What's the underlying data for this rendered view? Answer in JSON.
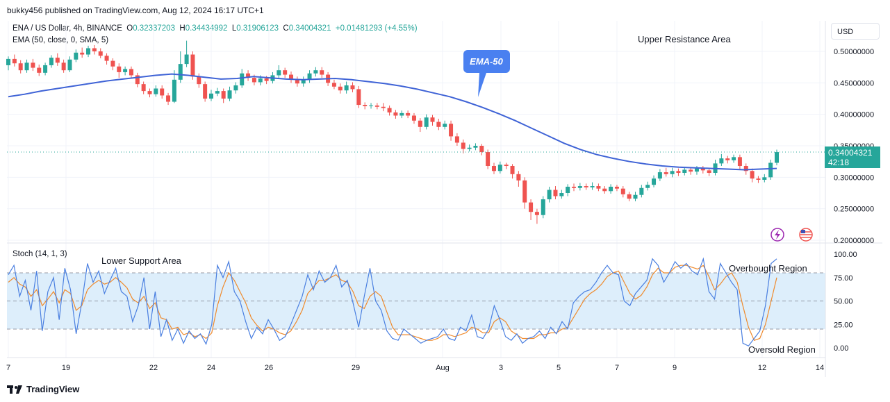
{
  "header": {
    "publisher": "bukky456 published on TradingView.com, Aug 12, 2024 16:17 UTC+1"
  },
  "legend": {
    "symbol_line": "ENA / US Dollar, 4h, BINANCE",
    "open_label": "O",
    "open": "0.32337203",
    "high_label": "H",
    "high": "0.34434992",
    "low_label": "L",
    "low": "0.31906123",
    "close_label": "C",
    "close": "0.34004321",
    "change": "+0.01481293 (+4.55%)",
    "ema_line": "EMA (50, close, 0, SMA, 5)"
  },
  "currency_button": "USD",
  "current_price": {
    "price": "0.34004321",
    "countdown": "42:18"
  },
  "annotations": {
    "upper_resistance": "Upper Resistance Area",
    "ema_callout": "EMA-50",
    "lower_support": "Lower Support Area",
    "overbought": "Overbought Region",
    "oversold": "Oversold Region"
  },
  "stoch_label": "Stoch (14, 1, 3)",
  "footer_brand": "TradingView",
  "colors": {
    "up": "#26a69a",
    "down": "#ef5350",
    "ema": "#3f63d6",
    "stoch_k": "#4a7fe0",
    "stoch_d": "#ef8a2c",
    "band": "#ddeefb"
  },
  "chart_data": [
    {
      "type": "candlestick",
      "title": "ENA / US Dollar, 4h, BINANCE",
      "price_axis_ticks": [
        "0.50000000",
        "0.45000000",
        "0.40000000",
        "0.35000000",
        "0.30000000",
        "0.25000000",
        "0.20000000"
      ],
      "ylim": [
        0.2,
        0.51
      ],
      "time_axis_ticks": [
        "7",
        "19",
        "22",
        "24",
        "26",
        "29",
        "Aug",
        "3",
        "5",
        "7",
        "9",
        "12",
        "14"
      ],
      "ema_50": [
        0.428,
        0.432,
        0.437,
        0.441,
        0.445,
        0.449,
        0.453,
        0.456,
        0.459,
        0.462,
        0.464,
        0.462,
        0.459,
        0.456,
        0.457,
        0.46,
        0.458,
        0.456,
        0.455,
        0.456,
        0.457,
        0.455,
        0.452,
        0.449,
        0.445,
        0.44,
        0.434,
        0.428,
        0.42,
        0.411,
        0.401,
        0.39,
        0.378,
        0.366,
        0.354,
        0.344,
        0.336,
        0.33,
        0.325,
        0.321,
        0.318,
        0.316,
        0.315,
        0.314,
        0.313,
        0.312,
        0.313,
        0.314
      ],
      "candles": [
        [
          0.478,
          0.488,
          0.492,
          0.47
        ],
        [
          0.488,
          0.481,
          0.495,
          0.476
        ],
        [
          0.481,
          0.47,
          0.486,
          0.465
        ],
        [
          0.47,
          0.482,
          0.487,
          0.466
        ],
        [
          0.482,
          0.474,
          0.488,
          0.469
        ],
        [
          0.474,
          0.466,
          0.479,
          0.461
        ],
        [
          0.466,
          0.478,
          0.482,
          0.462
        ],
        [
          0.478,
          0.49,
          0.494,
          0.474
        ],
        [
          0.49,
          0.482,
          0.497,
          0.477
        ],
        [
          0.482,
          0.47,
          0.487,
          0.466
        ],
        [
          0.47,
          0.487,
          0.492,
          0.467
        ],
        [
          0.487,
          0.498,
          0.503,
          0.483
        ],
        [
          0.498,
          0.495,
          0.506,
          0.49
        ],
        [
          0.495,
          0.505,
          0.509,
          0.491
        ],
        [
          0.505,
          0.5,
          0.51,
          0.495
        ],
        [
          0.5,
          0.493,
          0.505,
          0.489
        ],
        [
          0.493,
          0.485,
          0.497,
          0.479
        ],
        [
          0.485,
          0.476,
          0.489,
          0.47
        ],
        [
          0.476,
          0.467,
          0.481,
          0.458
        ],
        [
          0.467,
          0.472,
          0.476,
          0.462
        ],
        [
          0.472,
          0.462,
          0.476,
          0.457
        ],
        [
          0.462,
          0.448,
          0.466,
          0.443
        ],
        [
          0.448,
          0.437,
          0.452,
          0.432
        ],
        [
          0.437,
          0.432,
          0.441,
          0.427
        ],
        [
          0.432,
          0.441,
          0.446,
          0.428
        ],
        [
          0.441,
          0.43,
          0.446,
          0.425
        ],
        [
          0.43,
          0.42,
          0.434,
          0.415
        ],
        [
          0.42,
          0.455,
          0.47,
          0.418
        ],
        [
          0.455,
          0.48,
          0.5,
          0.45
        ],
        [
          0.48,
          0.495,
          0.517,
          0.475
        ],
        [
          0.495,
          0.46,
          0.5,
          0.455
        ],
        [
          0.46,
          0.448,
          0.465,
          0.442
        ],
        [
          0.448,
          0.425,
          0.452,
          0.42
        ],
        [
          0.425,
          0.433,
          0.439,
          0.421
        ],
        [
          0.433,
          0.437,
          0.442,
          0.429
        ],
        [
          0.437,
          0.425,
          0.441,
          0.418
        ],
        [
          0.425,
          0.438,
          0.444,
          0.421
        ],
        [
          0.438,
          0.446,
          0.451,
          0.433
        ],
        [
          0.446,
          0.465,
          0.472,
          0.442
        ],
        [
          0.465,
          0.458,
          0.47,
          0.453
        ],
        [
          0.458,
          0.451,
          0.463,
          0.446
        ],
        [
          0.451,
          0.457,
          0.462,
          0.446
        ],
        [
          0.457,
          0.453,
          0.461,
          0.448
        ],
        [
          0.453,
          0.462,
          0.467,
          0.449
        ],
        [
          0.462,
          0.47,
          0.478,
          0.457
        ],
        [
          0.47,
          0.463,
          0.474,
          0.458
        ],
        [
          0.463,
          0.455,
          0.468,
          0.45
        ],
        [
          0.455,
          0.449,
          0.46,
          0.444
        ],
        [
          0.449,
          0.455,
          0.46,
          0.444
        ],
        [
          0.455,
          0.465,
          0.47,
          0.45
        ],
        [
          0.465,
          0.47,
          0.475,
          0.46
        ],
        [
          0.47,
          0.463,
          0.475,
          0.458
        ],
        [
          0.463,
          0.45,
          0.467,
          0.445
        ],
        [
          0.45,
          0.444,
          0.455,
          0.44
        ],
        [
          0.444,
          0.438,
          0.449,
          0.433
        ],
        [
          0.438,
          0.446,
          0.452,
          0.433
        ],
        [
          0.446,
          0.44,
          0.451,
          0.435
        ],
        [
          0.44,
          0.415,
          0.445,
          0.41
        ],
        [
          0.415,
          0.413,
          0.419,
          0.408
        ],
        [
          0.413,
          0.414,
          0.418,
          0.409
        ],
        [
          0.414,
          0.412,
          0.418,
          0.408
        ],
        [
          0.412,
          0.41,
          0.418,
          0.405
        ],
        [
          0.41,
          0.403,
          0.414,
          0.398
        ],
        [
          0.403,
          0.398,
          0.407,
          0.393
        ],
        [
          0.398,
          0.402,
          0.406,
          0.394
        ],
        [
          0.402,
          0.398,
          0.406,
          0.394
        ],
        [
          0.398,
          0.39,
          0.402,
          0.385
        ],
        [
          0.39,
          0.38,
          0.394,
          0.372
        ],
        [
          0.38,
          0.395,
          0.4,
          0.376
        ],
        [
          0.395,
          0.388,
          0.399,
          0.382
        ],
        [
          0.388,
          0.38,
          0.393,
          0.375
        ],
        [
          0.38,
          0.385,
          0.39,
          0.376
        ],
        [
          0.385,
          0.365,
          0.39,
          0.358
        ],
        [
          0.365,
          0.355,
          0.37,
          0.35
        ],
        [
          0.355,
          0.345,
          0.36,
          0.338
        ],
        [
          0.345,
          0.347,
          0.352,
          0.341
        ],
        [
          0.347,
          0.35,
          0.354,
          0.343
        ],
        [
          0.35,
          0.34,
          0.353,
          0.335
        ],
        [
          0.34,
          0.318,
          0.344,
          0.313
        ],
        [
          0.318,
          0.31,
          0.323,
          0.305
        ],
        [
          0.31,
          0.32,
          0.325,
          0.306
        ],
        [
          0.32,
          0.318,
          0.323,
          0.313
        ],
        [
          0.318,
          0.305,
          0.321,
          0.298
        ],
        [
          0.305,
          0.295,
          0.31,
          0.285
        ],
        [
          0.295,
          0.26,
          0.3,
          0.25
        ],
        [
          0.26,
          0.245,
          0.265,
          0.232
        ],
        [
          0.245,
          0.24,
          0.25,
          0.226
        ],
        [
          0.24,
          0.265,
          0.27,
          0.235
        ],
        [
          0.265,
          0.28,
          0.285,
          0.26
        ],
        [
          0.28,
          0.27,
          0.286,
          0.265
        ],
        [
          0.27,
          0.275,
          0.28,
          0.266
        ],
        [
          0.275,
          0.285,
          0.289,
          0.27
        ],
        [
          0.285,
          0.283,
          0.29,
          0.278
        ],
        [
          0.283,
          0.286,
          0.291,
          0.279
        ],
        [
          0.286,
          0.284,
          0.29,
          0.28
        ],
        [
          0.284,
          0.286,
          0.292,
          0.28
        ],
        [
          0.286,
          0.282,
          0.29,
          0.278
        ],
        [
          0.282,
          0.278,
          0.286,
          0.274
        ],
        [
          0.278,
          0.285,
          0.289,
          0.274
        ],
        [
          0.285,
          0.282,
          0.288,
          0.278
        ],
        [
          0.282,
          0.273,
          0.286,
          0.268
        ],
        [
          0.273,
          0.266,
          0.277,
          0.262
        ],
        [
          0.266,
          0.272,
          0.277,
          0.262
        ],
        [
          0.272,
          0.283,
          0.288,
          0.268
        ],
        [
          0.283,
          0.288,
          0.293,
          0.279
        ],
        [
          0.288,
          0.298,
          0.303,
          0.284
        ],
        [
          0.298,
          0.308,
          0.313,
          0.294
        ],
        [
          0.308,
          0.305,
          0.315,
          0.301
        ],
        [
          0.305,
          0.31,
          0.315,
          0.3
        ],
        [
          0.31,
          0.307,
          0.314,
          0.302
        ],
        [
          0.307,
          0.312,
          0.316,
          0.303
        ],
        [
          0.312,
          0.309,
          0.316,
          0.304
        ],
        [
          0.309,
          0.314,
          0.318,
          0.304
        ],
        [
          0.314,
          0.311,
          0.318,
          0.306
        ],
        [
          0.311,
          0.307,
          0.315,
          0.302
        ],
        [
          0.307,
          0.322,
          0.328,
          0.303
        ],
        [
          0.322,
          0.33,
          0.337,
          0.318
        ],
        [
          0.33,
          0.327,
          0.334,
          0.322
        ],
        [
          0.327,
          0.332,
          0.336,
          0.323
        ],
        [
          0.332,
          0.318,
          0.336,
          0.313
        ],
        [
          0.318,
          0.31,
          0.322,
          0.304
        ],
        [
          0.31,
          0.298,
          0.314,
          0.292
        ],
        [
          0.298,
          0.296,
          0.302,
          0.291
        ],
        [
          0.296,
          0.3,
          0.305,
          0.292
        ],
        [
          0.3,
          0.323,
          0.328,
          0.296
        ],
        [
          0.323,
          0.34,
          0.344,
          0.319
        ]
      ]
    },
    {
      "type": "line",
      "title": "Stoch (14, 1, 3)",
      "axis_ticks": [
        "100.00",
        "75.00",
        "50.00",
        "25.00",
        "0.00"
      ],
      "ylim": [
        -10,
        105
      ],
      "levels": [
        80,
        50,
        20
      ],
      "series": [
        {
          "values": [
            78,
            88,
            55,
            72,
            40,
            82,
            18,
            60,
            75,
            30,
            85,
            62,
            15,
            48,
            90,
            70,
            82,
            58,
            72,
            85,
            60,
            55,
            28,
            45,
            75,
            20,
            60,
            12,
            30,
            8,
            20,
            5,
            18,
            10,
            15,
            4,
            25,
            88,
            75,
            92,
            60,
            50,
            28,
            10,
            22,
            15,
            30,
            20,
            8,
            12,
            25,
            40,
            55,
            78,
            62,
            82,
            70,
            75,
            88,
            65,
            72,
            48,
            22,
            55,
            85,
            50,
            40,
            18,
            10,
            8,
            20,
            15,
            10,
            5,
            8,
            10,
            12,
            20,
            10,
            8,
            22,
            18,
            35,
            12,
            10,
            20,
            45,
            30,
            12,
            8,
            15,
            5,
            10,
            12,
            18,
            10,
            22,
            15,
            28,
            20,
            48,
            55,
            60,
            62,
            70,
            80,
            88,
            80,
            78,
            50,
            45,
            58,
            65,
            72,
            95,
            88,
            70,
            80,
            92,
            85,
            90,
            82,
            78,
            95,
            60,
            52,
            90,
            80,
            70,
            62,
            5,
            2,
            10,
            18,
            45,
            90,
            95
          ]
        },
        {
          "values": [
            70,
            75,
            68,
            65,
            55,
            62,
            45,
            52,
            60,
            48,
            62,
            58,
            40,
            45,
            62,
            68,
            72,
            68,
            70,
            75,
            70,
            64,
            52,
            48,
            55,
            42,
            48,
            32,
            30,
            20,
            22,
            14,
            16,
            12,
            14,
            10,
            16,
            45,
            65,
            80,
            72,
            60,
            48,
            32,
            24,
            18,
            22,
            20,
            16,
            14,
            18,
            28,
            40,
            58,
            65,
            72,
            72,
            75,
            78,
            72,
            70,
            60,
            45,
            42,
            55,
            60,
            55,
            38,
            22,
            14,
            14,
            14,
            12,
            10,
            8,
            8,
            10,
            14,
            14,
            12,
            14,
            16,
            22,
            20,
            16,
            16,
            28,
            32,
            28,
            18,
            14,
            10,
            10,
            10,
            14,
            14,
            16,
            16,
            20,
            22,
            32,
            42,
            52,
            58,
            62,
            68,
            76,
            80,
            82,
            70,
            58,
            52,
            56,
            65,
            78,
            85,
            80,
            80,
            86,
            88,
            88,
            86,
            84,
            88,
            76,
            62,
            68,
            76,
            80,
            70,
            45,
            22,
            8,
            10,
            25,
            50,
            75
          ]
        }
      ]
    }
  ]
}
